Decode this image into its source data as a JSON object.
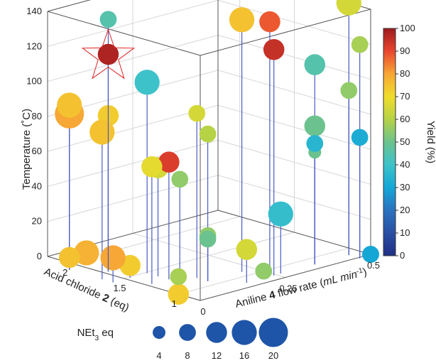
{
  "chart_data": {
    "type": "scatter",
    "projection": "3d",
    "axes": {
      "z": {
        "label": "Temperature (˚C)",
        "range": [
          0,
          140
        ],
        "ticks": [
          "0",
          "20",
          "40",
          "60",
          "80",
          "100",
          "120",
          "140"
        ]
      },
      "acid": {
        "label_pre": "Acid chloride ",
        "label_bold": "2",
        "label_post": " (eq)",
        "range": [
          0.8,
          2.2
        ],
        "ticks": [
          "1",
          "1.5",
          "2"
        ]
      },
      "flow": {
        "label_pre": "Aniline  ",
        "label_bold": "4",
        "label_post": " flow rate (",
        "label_unit": "mL min",
        "label_exp": "-1",
        "label_close": ")",
        "range": [
          0,
          0.5
        ],
        "ticks": [
          "0",
          "0.25",
          "0.5"
        ]
      }
    },
    "colorbar": {
      "label": "Yield (%)",
      "range": [
        0,
        100
      ],
      "ticks": [
        "0",
        "10",
        "20",
        "30",
        "40",
        "50",
        "60",
        "70",
        "80",
        "90",
        "100"
      ]
    },
    "size_legend": {
      "title_pre": "NEt",
      "title_sub": "3",
      "title_post": " eq",
      "values": [
        4,
        8,
        12,
        16,
        20
      ],
      "labels": [
        "4",
        "8",
        "12",
        "16",
        "20"
      ]
    },
    "grid": true,
    "star_marker": {
      "acid": 1.8,
      "flow": 0.05,
      "temperature": 120,
      "yield": 98,
      "net3": 12
    },
    "points": [
      {
        "acid": 2.0,
        "flow": 0.0,
        "temperature": 3,
        "yield": 75,
        "net3": 12
      },
      {
        "acid": 2.0,
        "flow": 0.05,
        "temperature": 3,
        "yield": 78,
        "net3": 16
      },
      {
        "acid": 1.6,
        "flow": 0.05,
        "temperature": 3,
        "yield": 73,
        "net3": 12
      },
      {
        "acid": 1.6,
        "flow": 0.0,
        "temperature": 10,
        "yield": 80,
        "net3": 16
      },
      {
        "acid": 1.0,
        "flow": 0.0,
        "temperature": 0,
        "yield": 73,
        "net3": 12
      },
      {
        "acid": 1.0,
        "flow": 0.0,
        "temperature": 10,
        "yield": 58,
        "net3": 8
      },
      {
        "acid": 1.0,
        "flow": 0.25,
        "temperature": 0,
        "yield": 55,
        "net3": 8
      },
      {
        "acid": 0.8,
        "flow": 0.5,
        "temperature": 0,
        "yield": 25,
        "net3": 8
      },
      {
        "acid": 0.8,
        "flow": 0.5,
        "temperature": 0,
        "yield": 30,
        "net3": 8
      },
      {
        "acid": 2.0,
        "flow": 0.0,
        "temperature": 85,
        "yield": 80,
        "net3": 20
      },
      {
        "acid": 2.0,
        "flow": 0.0,
        "temperature": 90,
        "yield": 75,
        "net3": 16
      },
      {
        "acid": 1.7,
        "flow": 0.0,
        "temperature": 80,
        "yield": 75,
        "net3": 16
      },
      {
        "acid": 1.8,
        "flow": 0.05,
        "temperature": 85,
        "yield": 73,
        "net3": 12
      },
      {
        "acid": 1.4,
        "flow": 0.1,
        "temperature": 63,
        "yield": 92,
        "net3": 12
      },
      {
        "acid": 1.4,
        "flow": 0.05,
        "temperature": 63,
        "yield": 68,
        "net3": 12
      },
      {
        "acid": 1.5,
        "flow": 0.1,
        "temperature": 58,
        "yield": 65,
        "net3": 12
      },
      {
        "acid": 1.3,
        "flow": 0.1,
        "temperature": 55,
        "yield": 55,
        "net3": 8
      },
      {
        "acid": 1.2,
        "flow": 0.15,
        "temperature": 80,
        "yield": 60,
        "net3": 8
      },
      {
        "acid": 1.2,
        "flow": 0.15,
        "temperature": 22,
        "yield": 55,
        "net3": 8
      },
      {
        "acid": 1.2,
        "flow": 0.15,
        "temperature": 20,
        "yield": 50,
        "net3": 8
      },
      {
        "acid": 1.0,
        "flow": 0.2,
        "temperature": 15,
        "yield": 65,
        "net3": 12
      },
      {
        "acid": 1.8,
        "flow": 0.05,
        "temperature": 140,
        "yield": 45,
        "net3": 8
      },
      {
        "acid": 1.6,
        "flow": 0.1,
        "temperature": 105,
        "yield": 40,
        "net3": 16
      },
      {
        "acid": 1.3,
        "flow": 0.15,
        "temperature": 90,
        "yield": 65,
        "net3": 8
      },
      {
        "acid": 1.2,
        "flow": 0.25,
        "temperature": 140,
        "yield": 75,
        "net3": 16
      },
      {
        "acid": 1.1,
        "flow": 0.3,
        "temperature": 138,
        "yield": 88,
        "net3": 12
      },
      {
        "acid": 1.0,
        "flow": 0.28,
        "temperature": 125,
        "yield": 95,
        "net3": 12
      },
      {
        "acid": 1.0,
        "flow": 0.4,
        "temperature": 110,
        "yield": 45,
        "net3": 12
      },
      {
        "acid": 1.0,
        "flow": 0.5,
        "temperature": 140,
        "yield": 65,
        "net3": 16
      },
      {
        "acid": 0.9,
        "flow": 0.5,
        "temperature": 118,
        "yield": 58,
        "net3": 8
      },
      {
        "acid": 1.0,
        "flow": 0.4,
        "temperature": 75,
        "yield": 50,
        "net3": 12
      },
      {
        "acid": 1.0,
        "flow": 0.4,
        "temperature": 60,
        "yield": 50,
        "net3": 4
      },
      {
        "acid": 1.0,
        "flow": 0.4,
        "temperature": 65,
        "yield": 35,
        "net3": 8
      },
      {
        "acid": 1.0,
        "flow": 0.5,
        "temperature": 90,
        "yield": 55,
        "net3": 8
      },
      {
        "acid": 0.9,
        "flow": 0.5,
        "temperature": 65,
        "yield": 32,
        "net3": 8
      },
      {
        "acid": 1.0,
        "flow": 0.3,
        "temperature": 30,
        "yield": 38,
        "net3": 16
      }
    ]
  }
}
